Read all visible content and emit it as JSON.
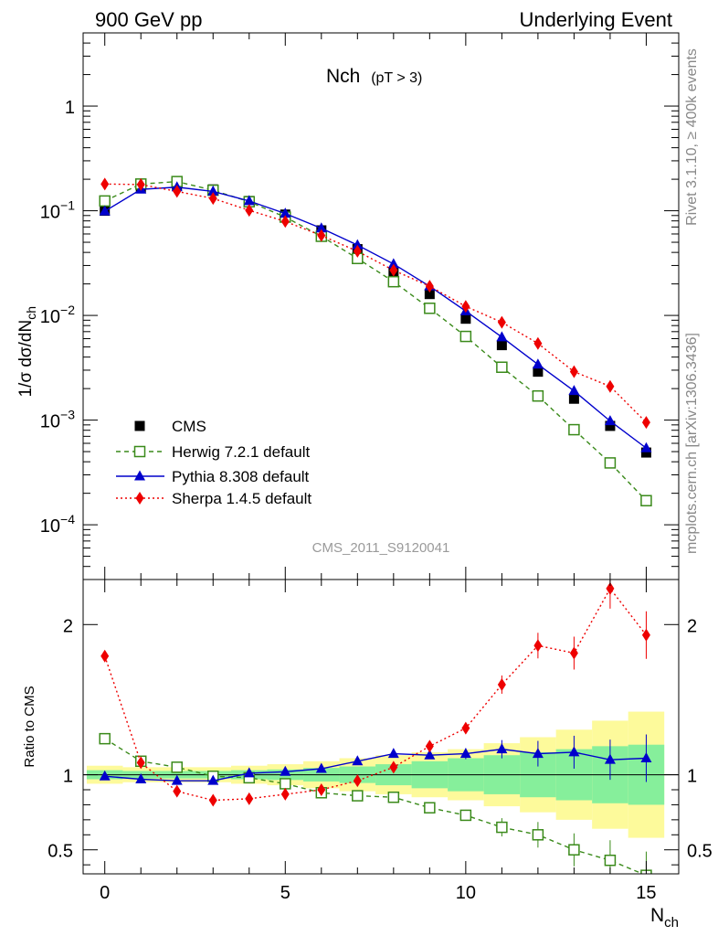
{
  "chart_data": [
    {
      "type": "line",
      "title_left": "900 GeV pp",
      "title_right": "Underlying Event",
      "plot_title_main": "Nch",
      "plot_title_sub": "(pT >  3)",
      "ylabel": "1/σ dσ/dN_ch",
      "yscale": "log",
      "ylim": [
        3e-05,
        5
      ],
      "xlim": [
        -0.6,
        15.9
      ],
      "x": [
        0,
        1,
        2,
        3,
        4,
        5,
        6,
        7,
        8,
        9,
        10,
        11,
        12,
        13,
        14,
        15
      ],
      "ytick_labels": [
        {
          "base": "10",
          "exp": "−4",
          "value": 0.0001
        },
        {
          "base": "10",
          "exp": "−3",
          "value": 0.001
        },
        {
          "base": "10",
          "exp": "−2",
          "value": 0.01
        },
        {
          "base": "10",
          "exp": "−1",
          "value": 0.1
        },
        {
          "base": "1",
          "exp": "",
          "value": 1
        }
      ],
      "series": [
        {
          "name": "CMS",
          "style": "data",
          "color": "#000000",
          "values": [
            0.1,
            0.165,
            0.175,
            0.16,
            0.124,
            0.092,
            0.065,
            0.043,
            0.026,
            0.016,
            0.0093,
            0.0052,
            0.0029,
            0.0016,
            0.00088,
            0.00049
          ]
        },
        {
          "name": "Herwig 7.2.1 default",
          "style": "herwig",
          "color": "#3a8a1a",
          "values": [
            0.124,
            0.18,
            0.19,
            0.157,
            0.122,
            0.087,
            0.057,
            0.035,
            0.021,
            0.0117,
            0.0063,
            0.0032,
            0.0017,
            0.00081,
            0.00039,
            0.00017
          ]
        },
        {
          "name": "Pythia 8.308 default",
          "style": "pythia",
          "color": "#0000cc",
          "values": [
            0.099,
            0.16,
            0.168,
            0.153,
            0.124,
            0.094,
            0.068,
            0.047,
            0.031,
            0.019,
            0.011,
            0.0062,
            0.0034,
            0.0019,
            0.00098,
            0.00054
          ]
        },
        {
          "name": "Sherpa 1.4.5 default",
          "style": "sherpa",
          "color": "#ee0000",
          "values": [
            0.18,
            0.178,
            0.153,
            0.131,
            0.101,
            0.079,
            0.058,
            0.041,
            0.027,
            0.019,
            0.0122,
            0.0086,
            0.0054,
            0.0029,
            0.0021,
            0.00095
          ]
        }
      ]
    },
    {
      "type": "line",
      "ylabel": "Ratio to CMS",
      "xlabel": "N_ch",
      "ylim": [
        0.34,
        2.3
      ],
      "xlim": [
        -0.6,
        15.9
      ],
      "x": [
        0,
        1,
        2,
        3,
        4,
        5,
        6,
        7,
        8,
        9,
        10,
        11,
        12,
        13,
        14,
        15
      ],
      "xtick_labels": [
        "0",
        "5",
        "10",
        "15"
      ],
      "ytick_labels": [
        "0.5",
        "1",
        "2"
      ],
      "band_yellow_half": [
        0.06,
        0.05,
        0.05,
        0.05,
        0.06,
        0.07,
        0.09,
        0.11,
        0.13,
        0.15,
        0.17,
        0.21,
        0.25,
        0.3,
        0.36,
        0.42
      ],
      "band_green_half": [
        0.03,
        0.025,
        0.025,
        0.025,
        0.03,
        0.035,
        0.045,
        0.055,
        0.07,
        0.09,
        0.11,
        0.13,
        0.15,
        0.17,
        0.19,
        0.2
      ],
      "series": [
        {
          "name": "Herwig 7.2.1 default",
          "style": "herwig",
          "color": "#3a8a1a",
          "values": [
            1.24,
            1.09,
            1.05,
            0.99,
            0.98,
            0.94,
            0.88,
            0.86,
            0.85,
            0.78,
            0.73,
            0.65,
            0.6,
            0.5,
            0.43,
            0.33
          ]
        },
        {
          "name": "Pythia 8.308 default",
          "style": "pythia",
          "color": "#0000cc",
          "values": [
            0.99,
            0.97,
            0.96,
            0.96,
            1.01,
            1.02,
            1.04,
            1.09,
            1.14,
            1.13,
            1.14,
            1.17,
            1.14,
            1.15,
            1.1,
            1.11
          ]
        },
        {
          "name": "Sherpa 1.4.5 default",
          "style": "sherpa",
          "color": "#ee0000",
          "values": [
            1.79,
            1.08,
            0.89,
            0.83,
            0.84,
            0.87,
            0.9,
            0.96,
            1.05,
            1.19,
            1.31,
            1.6,
            1.86,
            1.81,
            2.24,
            1.93
          ]
        }
      ]
    }
  ],
  "watermark": "CMS_2011_S9120041",
  "side_top": "Rivet 3.1.10, ≥ 400k events",
  "side_bottom": "mcplots.cern.ch [arXiv:1306.3436]"
}
